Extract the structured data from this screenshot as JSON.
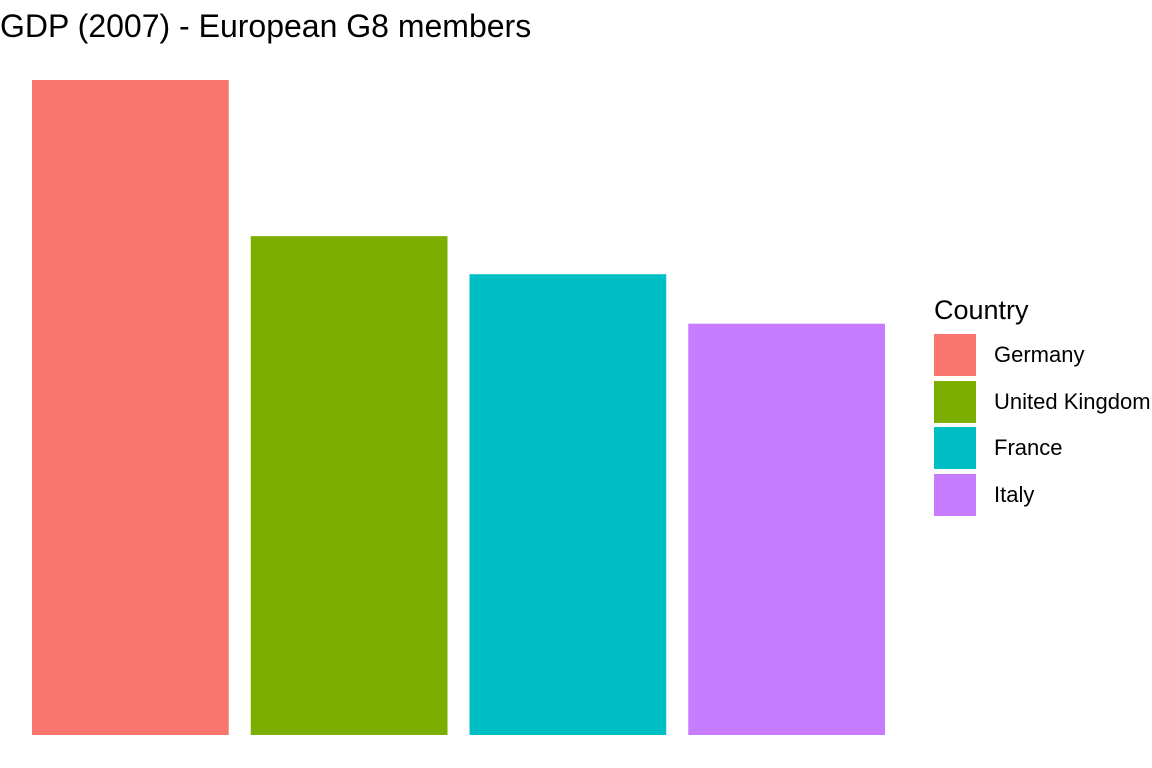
{
  "chart_data": {
    "type": "bar",
    "title": "GDP (2007) - European G8 members",
    "xlabel": "",
    "ylabel": "",
    "axes_visible": false,
    "grid": false,
    "legend_position": "right",
    "legend_title": "Country",
    "categories": [
      "Germany",
      "United Kingdom",
      "France",
      "Italy"
    ],
    "values": [
      3.44,
      2.62,
      2.42,
      2.16
    ],
    "colors": [
      "#F8766D",
      "#7CAE00",
      "#00BFC4",
      "#C77CFF"
    ],
    "ylim": [
      0,
      3.44
    ]
  }
}
